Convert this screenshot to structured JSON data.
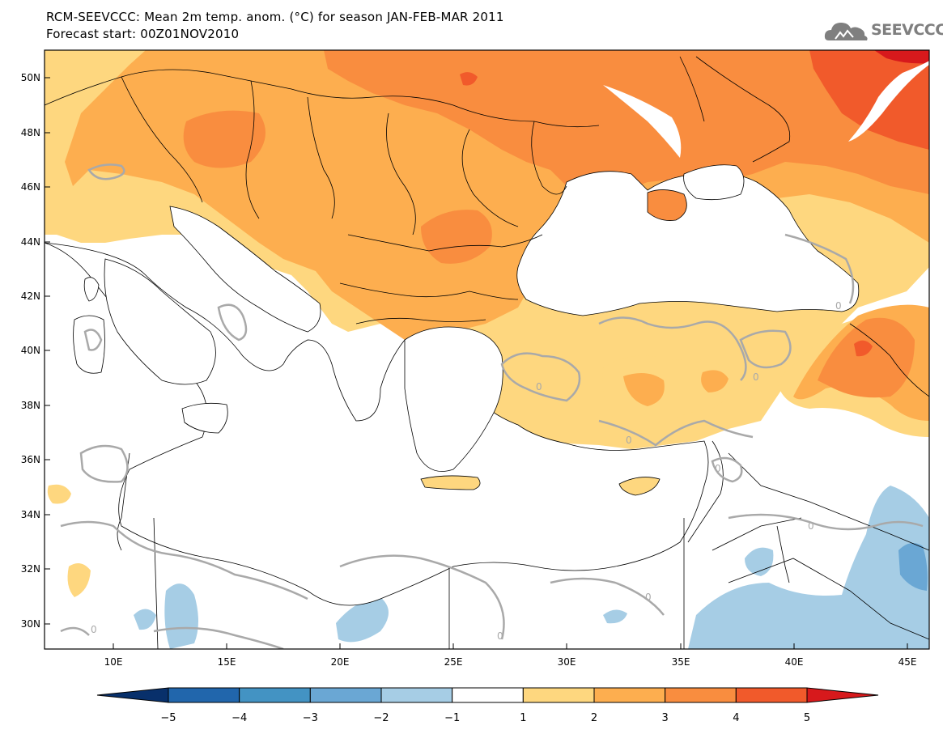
{
  "title": {
    "line1": "RCM-SEEVCCC: Mean 2m temp. anom. (°C) for season JAN-FEB-MAR 2011",
    "line2": "Forecast start: 00Z01NOV2010"
  },
  "logo": {
    "text": "SEEVCCC",
    "color": "#7f7f7f"
  },
  "map": {
    "lat_labels": [
      "50N",
      "48N",
      "46N",
      "44N",
      "42N",
      "40N",
      "38N",
      "36N",
      "34N",
      "32N",
      "30N"
    ],
    "lon_labels": [
      "10E",
      "15E",
      "20E",
      "25E",
      "30E",
      "35E",
      "40E",
      "45E"
    ],
    "contour_label": "0"
  },
  "colorbar": {
    "colors": [
      "#08306b",
      "#2166ac",
      "#4393c3",
      "#6aa7d4",
      "#a6cde5",
      "#ffffff",
      "#fed77f",
      "#fdae4f",
      "#f98d3f",
      "#f15a2b",
      "#d7191c"
    ],
    "labels": [
      "−5",
      "−4",
      "−3",
      "−2",
      "−1",
      "1",
      "2",
      "3",
      "4",
      "5"
    ]
  }
}
